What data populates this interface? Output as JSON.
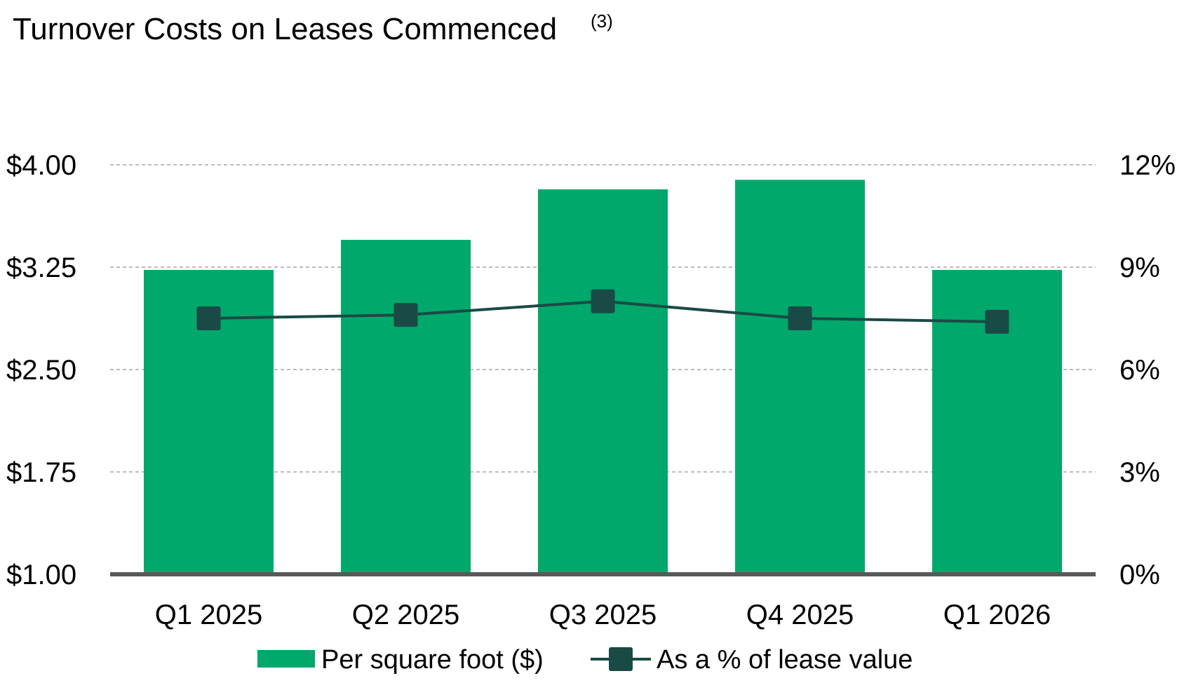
{
  "chart_data": {
    "type": "bar",
    "title": "Turnover Costs on Leases Commenced",
    "title_footnote": "(3)",
    "categories": [
      "Q1 2025",
      "Q2 2025",
      "Q3 2025",
      "Q4 2025",
      "Q1 2026"
    ],
    "series": [
      {
        "name": "Per square foot ($)",
        "type": "bar",
        "axis": "left",
        "color": "#00a86b",
        "values": [
          3.23,
          3.45,
          3.82,
          3.89,
          3.23
        ]
      },
      {
        "name": "As a % of lease value",
        "type": "line",
        "axis": "right",
        "color": "#1a4a45",
        "values": [
          7.5,
          7.6,
          8.0,
          7.5,
          7.4
        ]
      }
    ],
    "y_left": {
      "min": 1.0,
      "max": 4.0,
      "ticks": [
        {
          "value": 1.0,
          "label": "$1.00"
        },
        {
          "value": 1.75,
          "label": "$1.75"
        },
        {
          "value": 2.5,
          "label": "$2.50"
        },
        {
          "value": 3.25,
          "label": "$3.25"
        },
        {
          "value": 4.0,
          "label": "$4.00"
        }
      ]
    },
    "y_right": {
      "min": 0,
      "max": 12,
      "ticks": [
        {
          "value": 0,
          "label": "0%"
        },
        {
          "value": 3,
          "label": "3%"
        },
        {
          "value": 6,
          "label": "6%"
        },
        {
          "value": 9,
          "label": "9%"
        },
        {
          "value": 12,
          "label": "12%"
        }
      ]
    },
    "grid": true,
    "legend_position": "bottom"
  }
}
